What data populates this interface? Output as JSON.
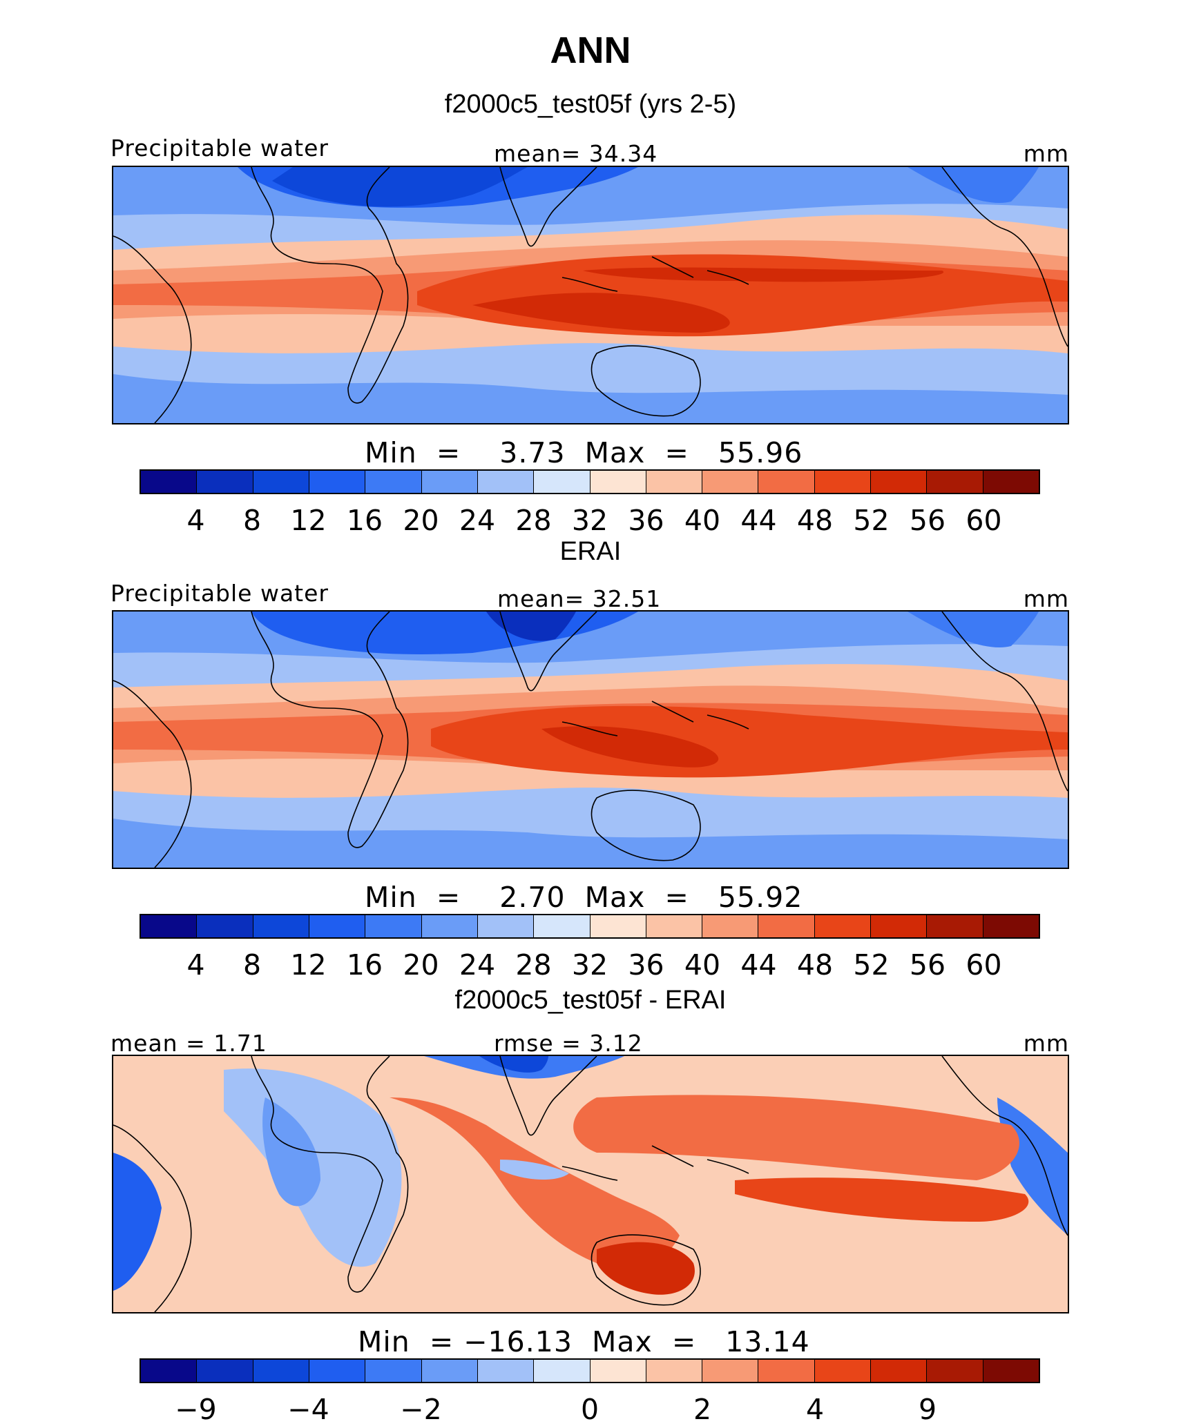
{
  "figure": {
    "title": "ANN"
  },
  "panels": [
    {
      "case_title": "f2000c5_test05f (yrs 2-5)",
      "left_label": "Precipitable water",
      "center_label": "mean=   34.34",
      "right_label": "mm",
      "minmax": "Min  =    3.73  Max  =   55.96",
      "colorbar": {
        "colors": [
          "#08088a",
          "#0a2fbd",
          "#0d47d9",
          "#1f5ef0",
          "#3d7af5",
          "#6a9cf7",
          "#a2c1f8",
          "#d6e6fb",
          "#fde4d3",
          "#fbc3a6",
          "#f79a75",
          "#f26c44",
          "#e84518",
          "#d22a06",
          "#a81a04",
          "#7d0a03"
        ],
        "tick_labels": [
          "4",
          "8",
          "12",
          "16",
          "20",
          "24",
          "28",
          "32",
          "36",
          "40",
          "44",
          "48",
          "52",
          "56",
          "60"
        ]
      }
    },
    {
      "case_title": "ERAI",
      "left_label": "Precipitable water",
      "center_label": "mean=   32.51",
      "right_label": "mm",
      "minmax": "Min  =    2.70  Max  =   55.92",
      "colorbar": {
        "colors": [
          "#08088a",
          "#0a2fbd",
          "#0d47d9",
          "#1f5ef0",
          "#3d7af5",
          "#6a9cf7",
          "#a2c1f8",
          "#d6e6fb",
          "#fde4d3",
          "#fbc3a6",
          "#f79a75",
          "#f26c44",
          "#e84518",
          "#d22a06",
          "#a81a04",
          "#7d0a03"
        ],
        "tick_labels": [
          "4",
          "8",
          "12",
          "16",
          "20",
          "24",
          "28",
          "32",
          "36",
          "40",
          "44",
          "48",
          "52",
          "56",
          "60"
        ]
      }
    },
    {
      "case_title": "f2000c5_test05f - ERAI",
      "left_label": "mean =    1.71",
      "center_label": "rmse =    3.12",
      "right_label": "mm",
      "minmax": "Min  = −16.13  Max  =   13.14",
      "colorbar": {
        "colors": [
          "#08088a",
          "#0a2fbd",
          "#0d47d9",
          "#1f5ef0",
          "#3d7af5",
          "#6a9cf7",
          "#a2c1f8",
          "#d6e6fb",
          "#fde4d3",
          "#fbc3a6",
          "#f79a75",
          "#f26c44",
          "#e84518",
          "#d22a06",
          "#a81a04",
          "#7d0a03"
        ],
        "tick_labels": [
          "−9",
          "−4",
          "−2",
          "0",
          "2",
          "4",
          "9"
        ]
      }
    }
  ],
  "chart_data": [
    {
      "type": "heatmap",
      "title": "f2000c5_test05f (yrs 2-5)",
      "field": "Precipitable water",
      "units": "mm",
      "mean": 34.34,
      "min": 3.73,
      "max": 55.96,
      "contour_levels": [
        4,
        8,
        12,
        16,
        20,
        24,
        28,
        32,
        36,
        40,
        44,
        48,
        52,
        56,
        60
      ]
    },
    {
      "type": "heatmap",
      "title": "ERAI",
      "field": "Precipitable water",
      "units": "mm",
      "mean": 32.51,
      "min": 2.7,
      "max": 55.92,
      "contour_levels": [
        4,
        8,
        12,
        16,
        20,
        24,
        28,
        32,
        36,
        40,
        44,
        48,
        52,
        56,
        60
      ]
    },
    {
      "type": "heatmap",
      "title": "f2000c5_test05f - ERAI",
      "units": "mm",
      "mean": 1.71,
      "rmse": 3.12,
      "min": -16.13,
      "max": 13.14,
      "contour_levels": [
        -9,
        -4,
        -2,
        0,
        2,
        4,
        9
      ]
    }
  ]
}
